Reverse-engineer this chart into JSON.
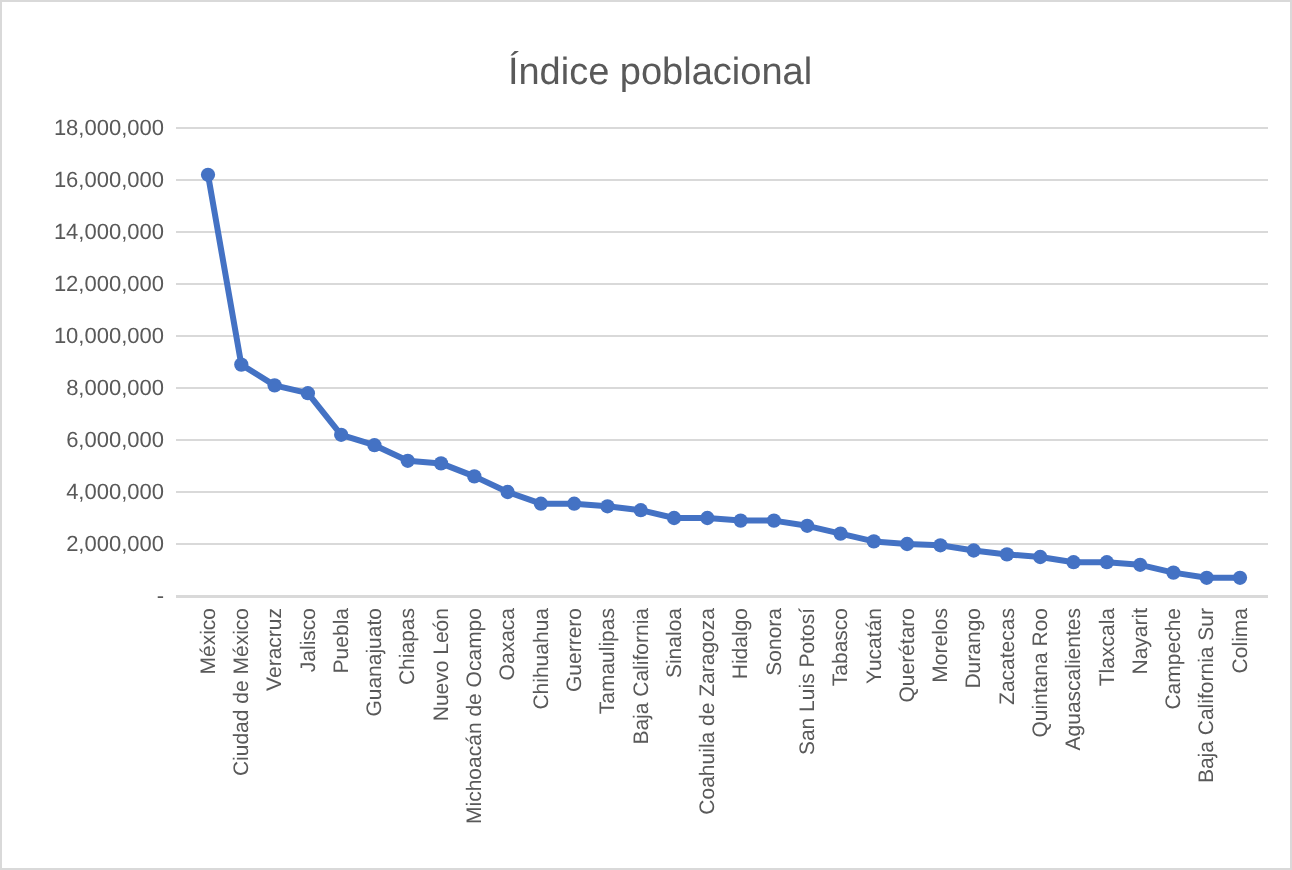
{
  "chart_data": {
    "type": "line",
    "title": "Índice poblacional",
    "categories": [
      "México",
      "Ciudad de México",
      "Veracruz",
      "Jalisco",
      "Puebla",
      "Guanajuato",
      "Chiapas",
      "Nuevo León",
      "Michoacán de Ocampo",
      "Oaxaca",
      "Chihuahua",
      "Guerrero",
      "Tamaulipas",
      "Baja California",
      "Sinaloa",
      "Coahuila de Zaragoza",
      "Hidalgo",
      "Sonora",
      "San Luis Potosí",
      "Tabasco",
      "Yucatán",
      "Querétaro",
      "Morelos",
      "Durango",
      "Zacatecas",
      "Quintana Roo",
      "Aguascalientes",
      "Tlaxcala",
      "Nayarit",
      "Campeche",
      "Baja California Sur",
      "Colima"
    ],
    "series": [
      {
        "color": "#4472c4",
        "values": [
          16200000,
          8900000,
          8100000,
          7800000,
          6200000,
          5800000,
          5200000,
          5100000,
          4600000,
          4000000,
          3550000,
          3550000,
          3450000,
          3300000,
          3000000,
          3000000,
          2900000,
          2900000,
          2700000,
          2400000,
          2100000,
          2000000,
          1950000,
          1750000,
          1600000,
          1500000,
          1300000,
          1300000,
          1200000,
          900000,
          700000,
          700000
        ]
      }
    ],
    "ylim": [
      0,
      18000000
    ],
    "yticks": [
      {
        "value": 0,
        "label": "-"
      },
      {
        "value": 2000000,
        "label": "2,000,000"
      },
      {
        "value": 4000000,
        "label": "4,000,000"
      },
      {
        "value": 6000000,
        "label": "6,000,000"
      },
      {
        "value": 8000000,
        "label": "8,000,000"
      },
      {
        "value": 10000000,
        "label": "10,000,000"
      },
      {
        "value": 12000000,
        "label": "12,000,000"
      },
      {
        "value": 14000000,
        "label": "14,000,000"
      },
      {
        "value": 16000000,
        "label": "16,000,000"
      },
      {
        "value": 18000000,
        "label": "18,000,000"
      }
    ],
    "grid": "y",
    "marker": "circle",
    "line_style": "solid"
  }
}
